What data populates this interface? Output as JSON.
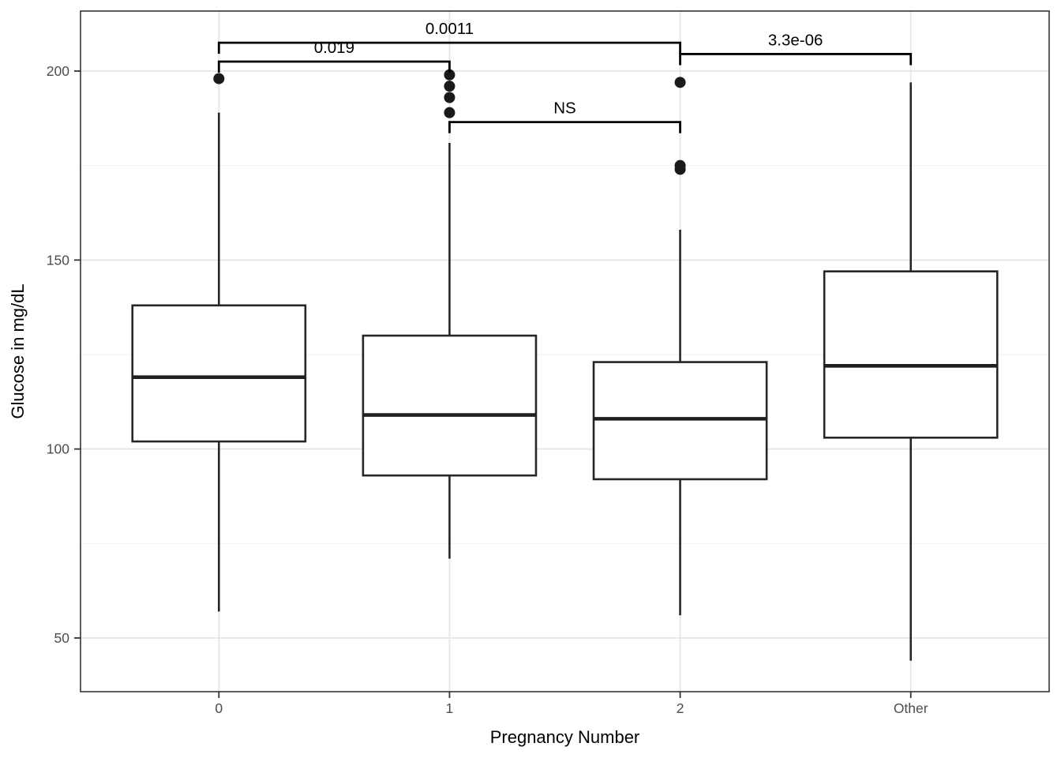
{
  "chart_data": {
    "type": "boxplot",
    "title": "",
    "xlabel": "Pregnancy Number",
    "ylabel": "Glucose in mg/dL",
    "categories": [
      "0",
      "1",
      "2",
      "Other"
    ],
    "y_ticks": [
      50,
      100,
      150,
      200
    ],
    "y_minor_gridlines": [
      75,
      125,
      175
    ],
    "ylim": [
      36,
      216
    ],
    "grid": true,
    "legend_position": "none",
    "series": [
      {
        "category": "0",
        "whisker_low": 57,
        "q1": 102,
        "median": 119,
        "q3": 138,
        "whisker_high": 189,
        "outliers": [
          198
        ]
      },
      {
        "category": "1",
        "whisker_low": 71,
        "q1": 93,
        "median": 109,
        "q3": 130,
        "whisker_high": 181,
        "outliers": [
          189,
          193,
          196,
          199
        ]
      },
      {
        "category": "2",
        "whisker_low": 56,
        "q1": 92,
        "median": 108,
        "q3": 123,
        "whisker_high": 158,
        "outliers": [
          174,
          175,
          197
        ]
      },
      {
        "category": "Other",
        "whisker_low": 44,
        "q1": 103,
        "median": 122,
        "q3": 147,
        "whisker_high": 197,
        "outliers": []
      }
    ],
    "significance_annotations": [
      {
        "group1": "0",
        "group2": "1",
        "label": "0.019",
        "bar_value": 202.5
      },
      {
        "group1": "0",
        "group2": "2",
        "label": "0.0011",
        "bar_value": 207.5
      },
      {
        "group1": "1",
        "group2": "2",
        "label": "NS",
        "bar_value": 186.5
      },
      {
        "group1": "2",
        "group2": "Other",
        "label": "3.3e-06",
        "bar_value": 204.5
      }
    ]
  },
  "colors": {
    "background": "#FFFFFF",
    "panel_background": "#FFFFFF",
    "panel_border": "#333333",
    "grid_major": "#E6E6E6",
    "grid_minor": "#F2F2F2",
    "box_stroke": "#262626",
    "box_fill": "#FFFFFF",
    "median_stroke": "#1F1F1F",
    "outlier_fill": "#1A1A1A",
    "bracket_stroke": "#000000",
    "tick_mark": "#333333",
    "tick_label": "#4D4D4D",
    "axis_title": "#000000",
    "annotation_text": "#000000"
  }
}
